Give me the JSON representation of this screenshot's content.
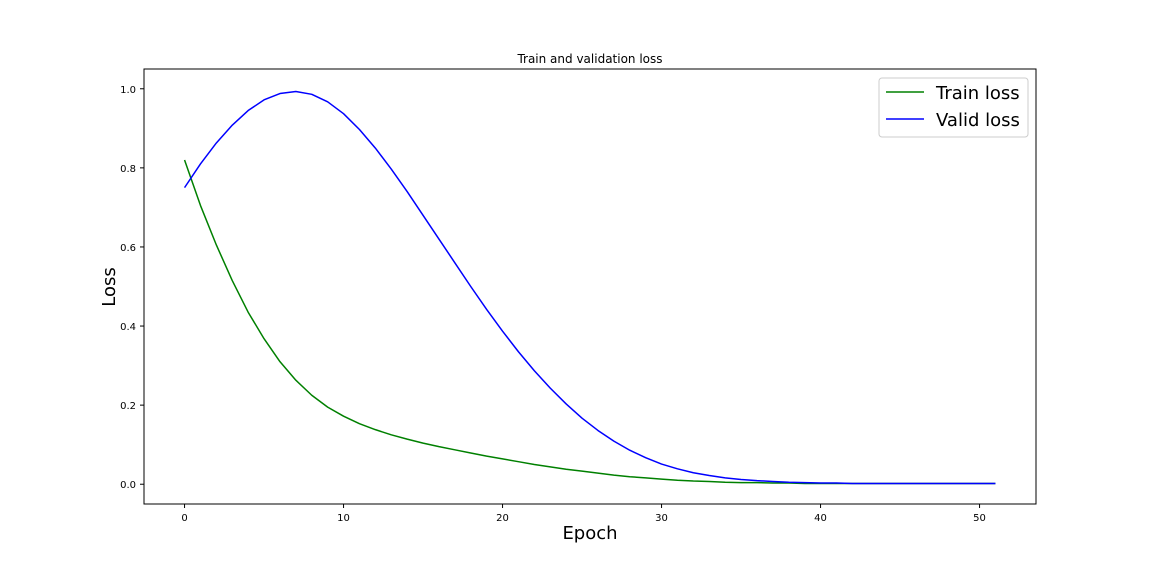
{
  "chart_data": {
    "type": "line",
    "title": "Train and validation loss",
    "xlabel": "Epoch",
    "ylabel": "Loss",
    "xlim": [
      -2.55,
      53.55
    ],
    "ylim": [
      -0.05,
      1.05
    ],
    "xticks": [
      0,
      10,
      20,
      30,
      40,
      50
    ],
    "yticks": [
      0.0,
      0.2,
      0.4,
      0.6,
      0.8,
      1.0
    ],
    "grid": false,
    "legend_position": "top-right",
    "series": [
      {
        "name": "Train loss",
        "color": "#008000",
        "x": [
          0,
          1,
          2,
          3,
          4,
          5,
          6,
          7,
          8,
          9,
          10,
          11,
          12,
          13,
          14,
          15,
          16,
          17,
          18,
          19,
          20,
          21,
          22,
          23,
          24,
          25,
          26,
          27,
          28,
          29,
          30,
          31,
          32,
          33,
          34,
          35,
          36,
          37,
          38,
          39,
          40,
          41,
          42,
          43,
          44,
          45,
          46,
          47,
          48,
          49,
          50,
          51
        ],
        "values": [
          0.82,
          0.705,
          0.605,
          0.515,
          0.435,
          0.368,
          0.31,
          0.263,
          0.225,
          0.195,
          0.172,
          0.153,
          0.138,
          0.125,
          0.114,
          0.104,
          0.095,
          0.087,
          0.079,
          0.071,
          0.064,
          0.057,
          0.05,
          0.044,
          0.038,
          0.033,
          0.028,
          0.023,
          0.019,
          0.016,
          0.013,
          0.01,
          0.008,
          0.007,
          0.005,
          0.004,
          0.004,
          0.003,
          0.003,
          0.002,
          0.002,
          0.002,
          0.002,
          0.002,
          0.002,
          0.002,
          0.002,
          0.002,
          0.002,
          0.002,
          0.002,
          0.002
        ]
      },
      {
        "name": "Valid loss",
        "color": "#0000ff",
        "x": [
          0,
          1,
          2,
          3,
          4,
          5,
          6,
          7,
          8,
          9,
          10,
          11,
          12,
          13,
          14,
          15,
          16,
          17,
          18,
          19,
          20,
          21,
          22,
          23,
          24,
          25,
          26,
          27,
          28,
          29,
          30,
          31,
          32,
          33,
          34,
          35,
          36,
          37,
          38,
          39,
          40,
          41,
          42,
          43,
          44,
          45,
          46,
          47,
          48,
          49,
          50,
          51
        ],
        "values": [
          0.75,
          0.81,
          0.863,
          0.908,
          0.945,
          0.972,
          0.988,
          0.993,
          0.986,
          0.967,
          0.937,
          0.897,
          0.85,
          0.797,
          0.74,
          0.68,
          0.62,
          0.56,
          0.5,
          0.442,
          0.387,
          0.335,
          0.287,
          0.243,
          0.203,
          0.167,
          0.136,
          0.109,
          0.086,
          0.067,
          0.051,
          0.039,
          0.029,
          0.022,
          0.016,
          0.012,
          0.009,
          0.007,
          0.005,
          0.004,
          0.003,
          0.003,
          0.002,
          0.002,
          0.002,
          0.002,
          0.002,
          0.002,
          0.002,
          0.002,
          0.002,
          0.002
        ]
      }
    ]
  }
}
